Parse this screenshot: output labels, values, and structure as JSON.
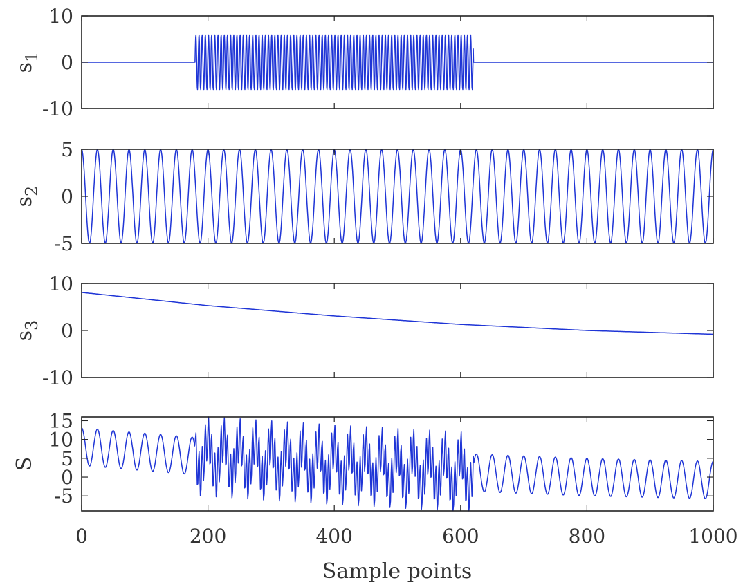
{
  "chart_data": [
    {
      "type": "line",
      "panel": 1,
      "ylabel": "s",
      "ylabel_sub": "1",
      "xlim": [
        0,
        1000
      ],
      "ylim": [
        -10,
        10
      ],
      "yticks": [
        10,
        0,
        -10
      ],
      "ytick_labels": [
        "10",
        "0",
        "-10"
      ],
      "series": [
        {
          "name": "s1",
          "description": "high-frequency burst of amplitude 6 between samples 180 and 620, zero elsewhere",
          "kind": "burst",
          "amplitude": 6,
          "start": 180,
          "end": 620,
          "cycles_per_sample": 0.2
        }
      ]
    },
    {
      "type": "line",
      "panel": 2,
      "ylabel": "s",
      "ylabel_sub": "2",
      "xlim": [
        0,
        1000
      ],
      "ylim": [
        -5,
        5
      ],
      "yticks": [
        5,
        0,
        -5
      ],
      "ytick_labels": [
        "5",
        "0",
        "-5"
      ],
      "series": [
        {
          "name": "s2",
          "kind": "cosine",
          "amplitude": 5,
          "cycles": 40
        }
      ]
    },
    {
      "type": "line",
      "panel": 3,
      "ylabel": "s",
      "ylabel_sub": "3",
      "xlim": [
        0,
        1000
      ],
      "ylim": [
        -10,
        10
      ],
      "yticks": [
        10,
        0,
        -10
      ],
      "ytick_labels": [
        "10",
        "0",
        "-10"
      ],
      "series": [
        {
          "name": "s3",
          "kind": "quadratic_trend",
          "x": [
            0,
            200,
            400,
            600,
            800,
            1000
          ],
          "y": [
            8.1,
            5.3,
            3.1,
            1.3,
            0.0,
            -0.8
          ]
        }
      ]
    },
    {
      "type": "line",
      "panel": 4,
      "ylabel": "S",
      "ylabel_sub": "",
      "xlabel": "Sample points",
      "xlim": [
        0,
        1000
      ],
      "ylim": [
        -9,
        16
      ],
      "yticks": [
        15,
        10,
        5,
        0,
        -5
      ],
      "ytick_labels": [
        "15",
        "10",
        "5",
        "0",
        "-5"
      ],
      "xticks": [
        0,
        200,
        400,
        600,
        800,
        1000
      ],
      "xtick_labels": [
        "0",
        "200",
        "400",
        "600",
        "800",
        "1000"
      ],
      "series": [
        {
          "name": "S",
          "description": "sum s1 + s2 + s3"
        }
      ]
    }
  ],
  "style": {
    "line_color": "#1f35d6",
    "axis_color": "#222222",
    "text_color": "#333333"
  }
}
